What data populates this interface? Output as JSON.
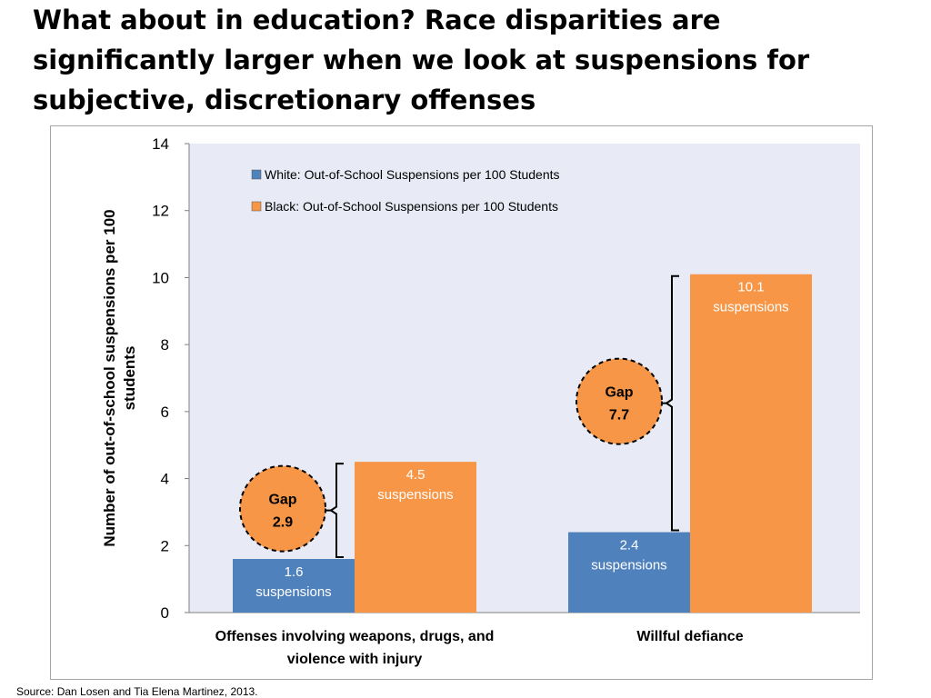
{
  "slide": {
    "title": "What about in education? Race disparities are significantly larger when we look at suspensions for subjective, discretionary offenses",
    "source": "Source: Dan Losen and Tia Elena Martinez, 2013."
  },
  "colors": {
    "white_series": "#4f81bd",
    "black_series": "#f79646",
    "plot_bg": "#e8ebf5",
    "gap_circle": "#f79646"
  },
  "chart_data": {
    "type": "bar",
    "categories": [
      "Offenses involving weapons, drugs, and violence with injury",
      "Willful defiance"
    ],
    "series": [
      {
        "name": "White: Out-of-School Suspensions per 100 Students",
        "values": [
          1.6,
          2.4
        ],
        "labels": [
          [
            "1.6",
            "suspensions"
          ],
          [
            "2.4",
            "suspensions"
          ]
        ]
      },
      {
        "name": "Black: Out-of-School Suspensions per 100 Students",
        "values": [
          4.5,
          10.1
        ],
        "labels": [
          [
            "4.5",
            "suspensions"
          ],
          [
            "10.1",
            "suspensions"
          ]
        ]
      }
    ],
    "ylabel": "Number of out-of-school suspensions per 100 students",
    "ylim": [
      0,
      14
    ],
    "yticks": [
      "0",
      "2",
      "4",
      "6",
      "8",
      "10",
      "12",
      "14"
    ],
    "grid": false,
    "legend": "top-left",
    "annotations": [
      {
        "category": 0,
        "lines": [
          "Gap",
          "2.9"
        ]
      },
      {
        "category": 1,
        "lines": [
          "Gap",
          "7.7"
        ]
      }
    ]
  }
}
